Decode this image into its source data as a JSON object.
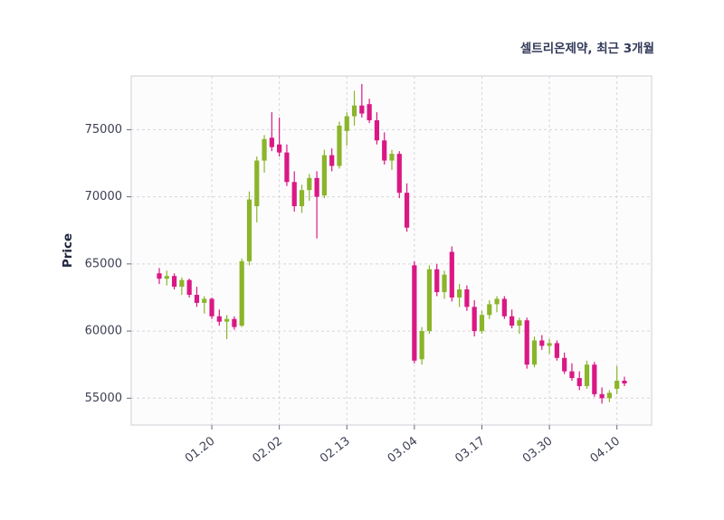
{
  "chart_data": {
    "type": "candlestick",
    "title": "셀트리온제약, 최근 3개월",
    "ylabel": "Price",
    "ylim": [
      53000,
      79000
    ],
    "yticks": [
      55000,
      60000,
      65000,
      70000,
      75000
    ],
    "xticks": [
      {
        "index": 7,
        "label": "01.20"
      },
      {
        "index": 16,
        "label": "02.02"
      },
      {
        "index": 25,
        "label": "02.13"
      },
      {
        "index": 34,
        "label": "03.04"
      },
      {
        "index": 43,
        "label": "03.17"
      },
      {
        "index": 52,
        "label": "03.30"
      },
      {
        "index": 61,
        "label": "04.10"
      }
    ],
    "grid": "dashed",
    "legend": "none",
    "colors": {
      "up": "#8bb52a",
      "down": "#da1884",
      "grid": "#d6d6dc",
      "border": "#cfcfd6",
      "axis_text": "#3c3f52",
      "title_text": "#333a59"
    },
    "candles_format": [
      "open",
      "high",
      "low",
      "close"
    ],
    "candles": [
      [
        64300,
        64700,
        63500,
        63900
      ],
      [
        63900,
        64500,
        63400,
        64100
      ],
      [
        64100,
        64300,
        63100,
        63300
      ],
      [
        63300,
        64000,
        62700,
        63800
      ],
      [
        63800,
        63900,
        62500,
        62700
      ],
      [
        62700,
        63300,
        61800,
        62100
      ],
      [
        62100,
        62600,
        61300,
        62400
      ],
      [
        62400,
        62500,
        60900,
        61100
      ],
      [
        61100,
        61600,
        60400,
        60700
      ],
      [
        60700,
        61200,
        59400,
        60900
      ],
      [
        60900,
        61100,
        60100,
        60300
      ],
      [
        60400,
        65400,
        60300,
        65200
      ],
      [
        65200,
        70400,
        64900,
        69800
      ],
      [
        69300,
        73000,
        68100,
        72700
      ],
      [
        72700,
        74600,
        71800,
        74300
      ],
      [
        74400,
        76300,
        73400,
        73700
      ],
      [
        73900,
        75900,
        73000,
        73300
      ],
      [
        73300,
        73900,
        70800,
        71100
      ],
      [
        71100,
        71900,
        68900,
        69300
      ],
      [
        69300,
        70900,
        68800,
        70500
      ],
      [
        70500,
        71700,
        69700,
        71400
      ],
      [
        71400,
        71900,
        66900,
        70000
      ],
      [
        70100,
        73500,
        69900,
        73100
      ],
      [
        73100,
        73600,
        71900,
        72300
      ],
      [
        72300,
        75600,
        72100,
        75300
      ],
      [
        74900,
        76300,
        73800,
        76000
      ],
      [
        76000,
        77900,
        75300,
        76800
      ],
      [
        76800,
        78400,
        75900,
        76200
      ],
      [
        76900,
        77300,
        75500,
        75700
      ],
      [
        75700,
        76300,
        73900,
        74200
      ],
      [
        74200,
        74800,
        72400,
        72700
      ],
      [
        72700,
        73500,
        72000,
        73200
      ],
      [
        73200,
        73400,
        69900,
        70300
      ],
      [
        70300,
        71000,
        67400,
        67700
      ],
      [
        64900,
        65200,
        57600,
        57800
      ],
      [
        57900,
        60300,
        57500,
        60000
      ],
      [
        60000,
        64900,
        59800,
        64600
      ],
      [
        64600,
        65000,
        62600,
        62900
      ],
      [
        62900,
        64500,
        62400,
        64200
      ],
      [
        65900,
        66300,
        62200,
        62500
      ],
      [
        62500,
        63500,
        61800,
        63100
      ],
      [
        63100,
        63400,
        61500,
        61800
      ],
      [
        61800,
        62300,
        59600,
        60000
      ],
      [
        60000,
        61500,
        59800,
        61200
      ],
      [
        61200,
        62300,
        60900,
        62000
      ],
      [
        62000,
        62600,
        61400,
        62400
      ],
      [
        62400,
        62600,
        60900,
        61100
      ],
      [
        61100,
        61600,
        60200,
        60400
      ],
      [
        60400,
        61000,
        59800,
        60800
      ],
      [
        60800,
        61000,
        57200,
        57500
      ],
      [
        57500,
        59600,
        57300,
        59300
      ],
      [
        59300,
        59700,
        58600,
        58900
      ],
      [
        58900,
        59400,
        58300,
        59100
      ],
      [
        59100,
        59300,
        57800,
        58000
      ],
      [
        58000,
        58400,
        56800,
        57000
      ],
      [
        57000,
        57600,
        56300,
        56500
      ],
      [
        56500,
        57000,
        55600,
        55900
      ],
      [
        55900,
        57800,
        55700,
        57500
      ],
      [
        57500,
        57700,
        55100,
        55300
      ],
      [
        55300,
        55800,
        54600,
        55000
      ],
      [
        55000,
        55600,
        54700,
        55400
      ],
      [
        55700,
        57400,
        55300,
        56300
      ],
      [
        56300,
        56600,
        55900,
        56100
      ]
    ]
  }
}
